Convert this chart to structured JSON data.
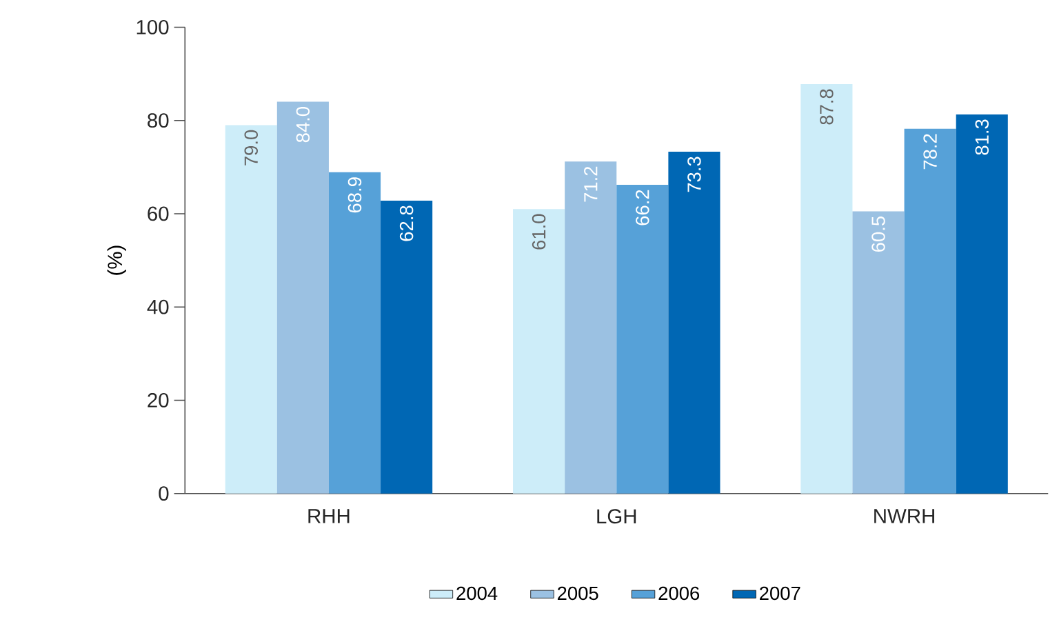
{
  "chart_data": {
    "type": "bar",
    "ylabel": "(%)",
    "categories": [
      "RHH",
      "LGH",
      "NWRH"
    ],
    "series": [
      {
        "name": "2004",
        "color": "#cdedf9",
        "values": [
          79.0,
          61.0,
          87.8
        ],
        "value_labels": [
          "79.0",
          "61.0",
          "87.8"
        ]
      },
      {
        "name": "2005",
        "color": "#9bc1e2",
        "values": [
          84.0,
          71.2,
          60.5
        ],
        "value_labels": [
          "84.0",
          "71.2",
          "60.5"
        ]
      },
      {
        "name": "2006",
        "color": "#56a1d8",
        "values": [
          68.9,
          66.2,
          78.2
        ],
        "value_labels": [
          "68.9",
          "66.2",
          "78.2"
        ]
      },
      {
        "name": "2007",
        "color": "#0067b4",
        "values": [
          62.8,
          73.3,
          81.3
        ],
        "value_labels": [
          "62.8",
          "73.3",
          "81.3"
        ]
      }
    ],
    "ylim": [
      0,
      100
    ],
    "yticks": [
      0,
      20,
      40,
      60,
      80,
      100
    ],
    "grid": false,
    "legend": "bottom"
  }
}
